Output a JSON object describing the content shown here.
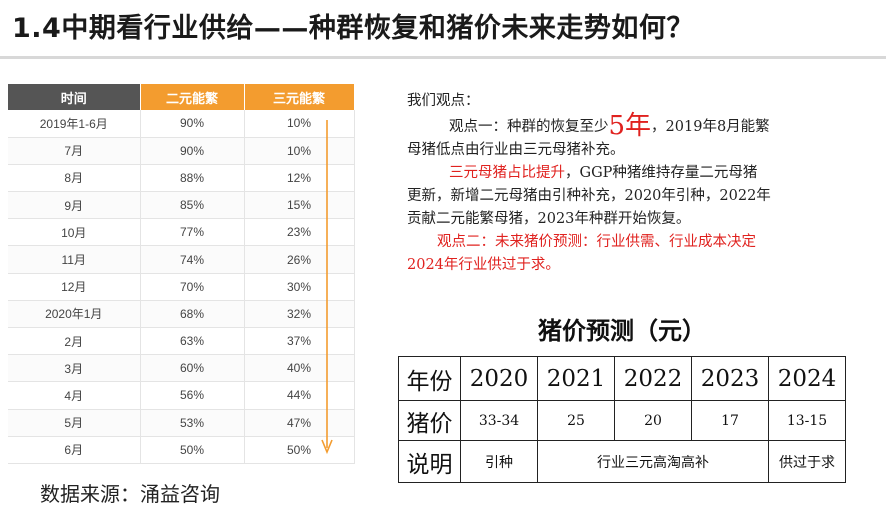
{
  "title": "1.4中期看行业供给——种群恢复和猪价未来走势如何？",
  "table": {
    "headers": [
      "时间",
      "二元能繁",
      "三元能繁"
    ],
    "rows": [
      [
        "2019年1-6月",
        "90%",
        "10%"
      ],
      [
        "7月",
        "90%",
        "10%"
      ],
      [
        "8月",
        "88%",
        "12%"
      ],
      [
        "9月",
        "85%",
        "15%"
      ],
      [
        "10月",
        "77%",
        "23%"
      ],
      [
        "11月",
        "74%",
        "26%"
      ],
      [
        "12月",
        "70%",
        "30%"
      ],
      [
        "2020年1月",
        "68%",
        "32%"
      ],
      [
        "2月",
        "63%",
        "37%"
      ],
      [
        "3月",
        "60%",
        "40%"
      ],
      [
        "4月",
        "56%",
        "44%"
      ],
      [
        "5月",
        "53%",
        "47%"
      ],
      [
        "6月",
        "50%",
        "50%"
      ]
    ],
    "arrow_color": "#f39c2f"
  },
  "source": "数据来源：涌益咨询",
  "views": {
    "heading": "我们观点：",
    "v1_prefix": "观点一：种群的恢复至少",
    "v1_years": "5年",
    "v1_tail": "，2019年8月能繁",
    "v1_line2": "母猪低点由行业由三元母猪补充。",
    "v1_red": "三元母猪占比提升",
    "v1_line3_tail": "，GGP种猪维持存量二元母猪",
    "v1_line4": "更新，新增二元母猪由引种补充，2020年引种，2022年",
    "v1_line5": "贡献二元能繁母猪，2023年种群开始恢复。",
    "v2_line1": "观点二：未来猪价预测：行业供需、行业成本决定",
    "v2_line2": "2024年行业供过于求。"
  },
  "forecast": {
    "title": "猪价预测（元）",
    "year_label": "年份",
    "years": [
      "2020",
      "2021",
      "2022",
      "2023",
      "2024"
    ],
    "price_label": "猪价",
    "prices": [
      "33-34",
      "25",
      "20",
      "17",
      "13-15"
    ],
    "note_label": "说明",
    "notes": [
      "引种",
      "行业三元高淘高补",
      "供过于求"
    ]
  },
  "colors": {
    "accent_orange": "#f39c2f",
    "header_gray": "#555555",
    "text_red": "#e0221f"
  }
}
